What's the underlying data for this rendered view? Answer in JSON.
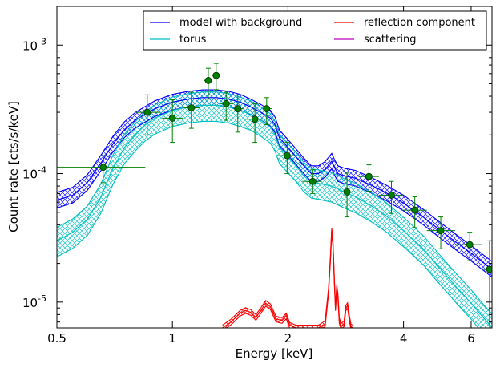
{
  "chart_data": {
    "type": "line",
    "title": "",
    "xlabel": "Energy [keV]",
    "ylabel": "Count rate [cts/s/keV]",
    "x_scale": "log",
    "y_scale": "log",
    "xlim": [
      0.5,
      6.8
    ],
    "ylim": [
      6.3e-06,
      0.002
    ],
    "x_ticks": [
      {
        "value": 0.5,
        "label": "0.5"
      },
      {
        "value": 1,
        "label": "1"
      },
      {
        "value": 2,
        "label": "2"
      },
      {
        "value": 4,
        "label": "4"
      },
      {
        "value": 6,
        "label": "6"
      }
    ],
    "y_ticks": [
      {
        "value": 1e-05,
        "base": "10",
        "exp": "-5"
      },
      {
        "value": 0.0001,
        "base": "10",
        "exp": "-4"
      },
      {
        "value": 0.001,
        "base": "10",
        "exp": "-3"
      }
    ],
    "legend": {
      "position": "top-right",
      "columns": 2,
      "entries": [
        {
          "label": "model with background",
          "color": "#0000ff"
        },
        {
          "label": "reflection component",
          "color": "#ff0000"
        },
        {
          "label": "torus",
          "color": "#00bfbf"
        },
        {
          "label": "scattering",
          "color": "#bf00bf"
        }
      ]
    },
    "series": [
      {
        "name": "model with background",
        "color": "#0000ff",
        "x": [
          0.5,
          0.55,
          0.6,
          0.65,
          0.7,
          0.75,
          0.8,
          0.85,
          0.9,
          1.0,
          1.1,
          1.2,
          1.3,
          1.4,
          1.5,
          1.6,
          1.7,
          1.8,
          1.85,
          1.9,
          2.0,
          2.1,
          2.2,
          2.3,
          2.4,
          2.5,
          2.6,
          2.65,
          2.7,
          2.8,
          3.0,
          3.3,
          3.6,
          4.0,
          4.5,
          5.0,
          5.5,
          6.0,
          6.5,
          6.8
        ],
        "y": [
          6.2e-05,
          6.8e-05,
          8.5e-05,
          0.00012,
          0.00017,
          0.00022,
          0.00026,
          0.00029,
          0.00032,
          0.00036,
          0.00038,
          0.00039,
          0.00039,
          0.00038,
          0.00036,
          0.00033,
          0.0003,
          0.00027,
          0.00024,
          0.00019,
          0.00016,
          0.000135,
          0.000115,
          0.0001,
          0.0001,
          0.000108,
          0.000125,
          0.00011,
          0.0001,
          9.6e-05,
          9.2e-05,
          8.1e-05,
          7.1e-05,
          5.9e-05,
          4.6e-05,
          3.6e-05,
          2.9e-05,
          2.4e-05,
          2e-05,
          1.8e-05
        ],
        "band": [
          0.87,
          1.15
        ]
      },
      {
        "name": "torus",
        "color": "#00bfbf",
        "x": [
          0.5,
          0.55,
          0.6,
          0.65,
          0.7,
          0.75,
          0.8,
          0.85,
          0.9,
          1.0,
          1.1,
          1.2,
          1.3,
          1.4,
          1.5,
          1.6,
          1.7,
          1.8,
          1.85,
          1.9,
          2.0,
          2.1,
          2.2,
          2.3,
          2.4,
          2.5,
          2.6,
          2.7,
          2.8,
          3.0,
          3.3,
          3.6,
          4.0,
          4.5,
          5.0,
          5.5,
          6.0,
          6.5,
          6.8
        ],
        "y": [
          3e-05,
          3.5e-05,
          4.4e-05,
          6.5e-05,
          0.00011,
          0.00016,
          0.0002,
          0.00024,
          0.00027,
          0.00031,
          0.00033,
          0.00034,
          0.00034,
          0.00033,
          0.00031,
          0.00029,
          0.00026,
          0.00023,
          0.0002,
          0.00016,
          0.000135,
          0.000115,
          9.6e-05,
          8.6e-05,
          8.4e-05,
          8.2e-05,
          8e-05,
          7.6e-05,
          7.2e-05,
          6.6e-05,
          5.6e-05,
          4.7e-05,
          3.6e-05,
          2.6e-05,
          1.8e-05,
          1.3e-05,
          9.8e-06,
          7.4e-06,
          6.4e-06
        ],
        "band": [
          0.75,
          1.27
        ]
      },
      {
        "name": "reflection component",
        "color": "#ff0000",
        "x": [
          1.35,
          1.42,
          1.5,
          1.55,
          1.6,
          1.65,
          1.7,
          1.75,
          1.8,
          1.86,
          1.93,
          1.98,
          2.02,
          2.1,
          2.2,
          2.3,
          2.4,
          2.5,
          2.55,
          2.58,
          2.6,
          2.62,
          2.64,
          2.66,
          2.68,
          2.7,
          2.72,
          2.75,
          2.8,
          2.83,
          2.86,
          2.89,
          2.92,
          2.96
        ],
        "y": [
          6.3e-06,
          7e-06,
          8.2e-06,
          8.6e-06,
          8.3e-06,
          7.6e-06,
          8.6e-06,
          9.8e-06,
          9.2e-06,
          7.4e-06,
          7.2e-06,
          7.8e-06,
          6.6e-06,
          6.3e-06,
          6.3e-06,
          6.3e-06,
          6.3e-06,
          6.8e-06,
          1.2e-05,
          2.2e-05,
          3.6e-05,
          2.8e-05,
          1.5e-05,
          9e-06,
          1.3e-05,
          1.1e-05,
          7.2e-06,
          6.5e-06,
          6.8e-06,
          9e-06,
          9.4e-06,
          7.5e-06,
          6.4e-06,
          6.3e-06
        ],
        "band": [
          0.95,
          1.05
        ]
      },
      {
        "name": "scattering",
        "color": "#bf00bf",
        "x": [],
        "y": []
      }
    ],
    "data_points": {
      "color": "#008000",
      "points": [
        {
          "x": 0.66,
          "y": 0.000112,
          "xlo": 0.5,
          "xhi": 0.85,
          "ylo": 8.5e-05,
          "yhi": 0.000138
        },
        {
          "x": 0.86,
          "y": 0.0003,
          "xlo": 0.8,
          "xhi": 0.93,
          "ylo": 0.0002,
          "yhi": 0.00041
        },
        {
          "x": 1.0,
          "y": 0.00027,
          "xlo": 0.94,
          "xhi": 1.07,
          "ylo": 0.000175,
          "yhi": 0.000375
        },
        {
          "x": 1.12,
          "y": 0.000325,
          "xlo": 1.07,
          "xhi": 1.18,
          "ylo": 0.000225,
          "yhi": 0.00043
        },
        {
          "x": 1.24,
          "y": 0.00053,
          "xlo": 1.21,
          "xhi": 1.27,
          "ylo": 0.00038,
          "yhi": 0.00066
        },
        {
          "x": 1.3,
          "y": 0.00058,
          "xlo": 1.27,
          "xhi": 1.33,
          "ylo": 0.00045,
          "yhi": 0.00072
        },
        {
          "x": 1.38,
          "y": 0.00035,
          "xlo": 1.33,
          "xhi": 1.44,
          "ylo": 0.00026,
          "yhi": 0.00043
        },
        {
          "x": 1.48,
          "y": 0.00032,
          "xlo": 1.44,
          "xhi": 1.53,
          "ylo": 0.00021,
          "yhi": 0.00041
        },
        {
          "x": 1.64,
          "y": 0.000265,
          "xlo": 1.55,
          "xhi": 1.72,
          "ylo": 0.000175,
          "yhi": 0.00035
        },
        {
          "x": 1.76,
          "y": 0.00032,
          "xlo": 1.72,
          "xhi": 1.82,
          "ylo": 0.00024,
          "yhi": 0.00039
        },
        {
          "x": 1.99,
          "y": 0.000138,
          "xlo": 1.88,
          "xhi": 2.1,
          "ylo": 0.0001,
          "yhi": 0.000175
        },
        {
          "x": 2.32,
          "y": 8.7e-05,
          "xlo": 2.18,
          "xhi": 2.45,
          "ylo": 7e-05,
          "yhi": 0.000107
        },
        {
          "x": 2.85,
          "y": 7.2e-05,
          "xlo": 2.62,
          "xhi": 3.05,
          "ylo": 4.6e-05,
          "yhi": 0.000101
        },
        {
          "x": 3.25,
          "y": 9.5e-05,
          "xlo": 3.05,
          "xhi": 3.45,
          "ylo": 7.3e-05,
          "yhi": 0.000117
        },
        {
          "x": 3.72,
          "y": 6.8e-05,
          "xlo": 3.45,
          "xhi": 3.98,
          "ylo": 4.9e-05,
          "yhi": 8.7e-05
        },
        {
          "x": 4.28,
          "y": 5.2e-05,
          "xlo": 3.98,
          "xhi": 4.6,
          "ylo": 3.8e-05,
          "yhi": 6.6e-05
        },
        {
          "x": 5.0,
          "y": 3.6e-05,
          "xlo": 4.6,
          "xhi": 5.45,
          "ylo": 2.6e-05,
          "yhi": 4.6e-05
        },
        {
          "x": 5.95,
          "y": 2.8e-05,
          "xlo": 5.45,
          "xhi": 6.4,
          "ylo": 2.1e-05,
          "yhi": 3.5e-05
        },
        {
          "x": 6.7,
          "y": 1.8e-05,
          "xlo": 6.4,
          "xhi": 6.8,
          "ylo": 6.3e-06,
          "yhi": 3e-05
        }
      ]
    }
  }
}
